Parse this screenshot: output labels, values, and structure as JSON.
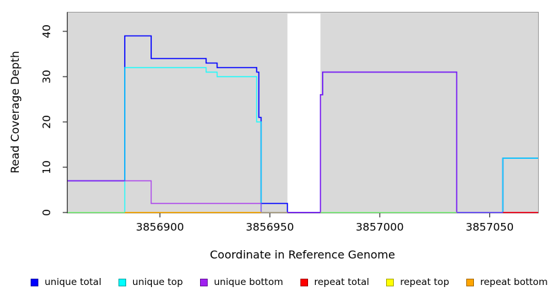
{
  "chart_data": {
    "type": "step-line",
    "title": "",
    "xlabel": "Coordinate in Reference Genome",
    "ylabel": "Read Coverage Depth",
    "xlim": [
      3856858,
      3857072
    ],
    "ylim": [
      0,
      44
    ],
    "grid": false,
    "plot_bg": "#d9d9d9",
    "mask_region": {
      "start": 3856958,
      "end": 3856973,
      "color": "#ffffff"
    },
    "x_ticks": [
      {
        "value": 3856900,
        "label": "3856900"
      },
      {
        "value": 3856950,
        "label": "3856950"
      },
      {
        "value": 3857000,
        "label": "3857000"
      },
      {
        "value": 3857050,
        "label": "3857050"
      }
    ],
    "y_ticks": [
      {
        "value": 0,
        "label": "0"
      },
      {
        "value": 10,
        "label": "10"
      },
      {
        "value": 20,
        "label": "20"
      },
      {
        "value": 30,
        "label": "30"
      },
      {
        "value": 40,
        "label": "40"
      }
    ],
    "series": [
      {
        "name": "unique total",
        "color": "#0000ff",
        "opacity": 1.0,
        "width": 1.6,
        "segments": [
          {
            "steps": [
              [
                3856858,
                7
              ],
              [
                3856884,
                39
              ],
              [
                3856896,
                34
              ],
              [
                3856921,
                33
              ],
              [
                3856926,
                32
              ],
              [
                3856944,
                31
              ],
              [
                3856945,
                21
              ],
              [
                3856946,
                2
              ],
              [
                3856958,
                0
              ],
              [
                3856973,
                26
              ],
              [
                3856974,
                31
              ],
              [
                3857035,
                0
              ],
              [
                3857056,
                12
              ]
            ],
            "end": 3857072
          }
        ]
      },
      {
        "name": "unique top",
        "color": "#00ffff",
        "opacity": 0.85,
        "width": 1.4,
        "segments": [
          {
            "steps": [
              [
                3856858,
                0
              ],
              [
                3856884,
                32
              ],
              [
                3856921,
                31
              ],
              [
                3856926,
                30
              ],
              [
                3856944,
                20
              ],
              [
                3856946,
                0
              ]
            ],
            "end": 3856958
          },
          {
            "steps": [
              [
                3856973,
                0
              ],
              [
                3857056,
                12
              ]
            ],
            "end": 3857072
          }
        ]
      },
      {
        "name": "unique bottom",
        "color": "#a020f0",
        "opacity": 0.8,
        "width": 1.4,
        "segments": [
          {
            "steps": [
              [
                3856858,
                7
              ],
              [
                3856896,
                2
              ],
              [
                3856946,
                0
              ],
              [
                3856973,
                26
              ],
              [
                3856974,
                31
              ],
              [
                3857035,
                0
              ]
            ],
            "end": 3857072
          }
        ]
      },
      {
        "name": "repeat total",
        "color": "#ff0000",
        "opacity": 1.0,
        "width": 1.4,
        "segments": [
          {
            "steps": [
              [
                3857056,
                0
              ]
            ],
            "end": 3857072
          }
        ]
      },
      {
        "name": "repeat top",
        "color": "#ffff00",
        "opacity": 0.5,
        "width": 1.4,
        "segments": [
          {
            "steps": [
              [
                3856858,
                0
              ]
            ],
            "end": 3856958
          },
          {
            "steps": [
              [
                3856973,
                0
              ]
            ],
            "end": 3857035
          }
        ]
      },
      {
        "name": "repeat bottom",
        "color": "#ffa500",
        "opacity": 1.0,
        "width": 1.6,
        "segments": [
          {
            "steps": [
              [
                3856884,
                0
              ]
            ],
            "end": 3856946
          }
        ]
      }
    ],
    "legend": {
      "position": "bottom",
      "items": [
        {
          "label": "unique total",
          "color": "#0000ff"
        },
        {
          "label": "unique top",
          "color": "#00ffff"
        },
        {
          "label": "unique bottom",
          "color": "#a020f0"
        },
        {
          "label": "repeat total",
          "color": "#ff0000"
        },
        {
          "label": "repeat top",
          "color": "#ffff00"
        },
        {
          "label": "repeat bottom",
          "color": "#ffa500"
        }
      ]
    }
  }
}
